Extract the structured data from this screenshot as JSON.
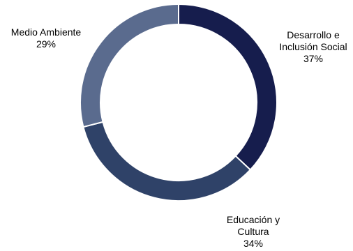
{
  "chart_data": {
    "type": "pie",
    "variant": "donut",
    "categories": [
      "Desarrollo e Inclusión Social",
      "Educación y Cultura",
      "Medio Ambiente"
    ],
    "label_lines": [
      [
        "Desarrollo e",
        "Inclusión Social"
      ],
      [
        "Educación y",
        "Cultura"
      ],
      [
        "Medio Ambiente"
      ]
    ],
    "values": [
      37,
      34,
      29
    ],
    "value_labels": [
      "37%",
      "34%",
      "29%"
    ],
    "colors": [
      "#161d4d",
      "#2f4268",
      "#5a6b8e"
    ],
    "legend": "none",
    "start_angle": "12 o'clock",
    "direction": "clockwise"
  }
}
